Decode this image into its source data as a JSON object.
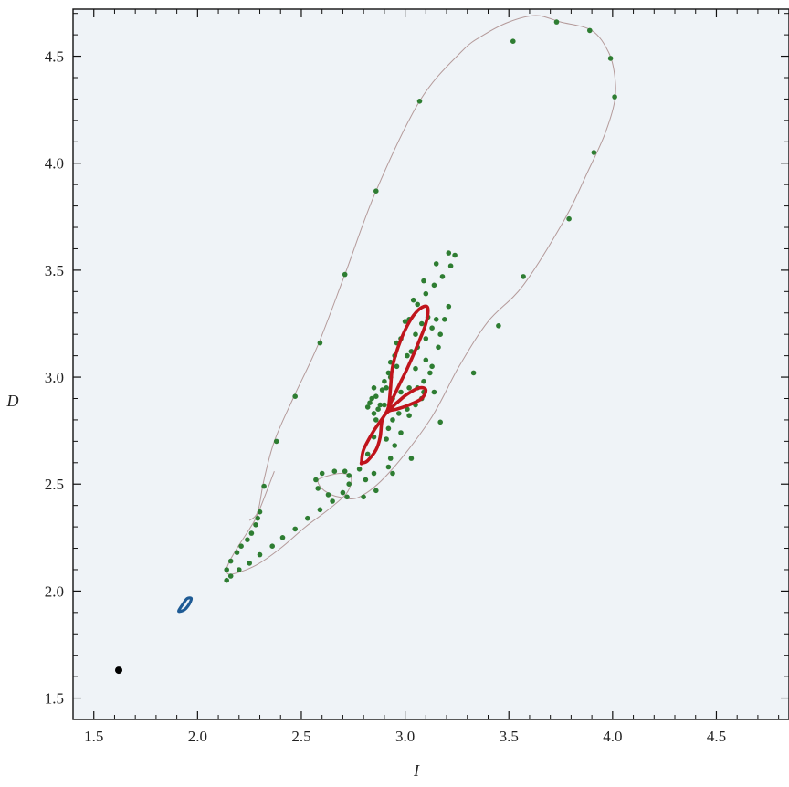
{
  "chart_data": {
    "type": "scatter",
    "title": "",
    "xlabel": "I",
    "ylabel": "D",
    "xlim": [
      1.4,
      4.85
    ],
    "ylim": [
      1.4,
      4.72
    ],
    "x_ticks": [
      1.5,
      2.0,
      2.5,
      3.0,
      3.5,
      4.0,
      4.5
    ],
    "y_ticks": [
      1.5,
      2.0,
      2.5,
      3.0,
      3.5,
      4.0,
      4.5
    ],
    "x_tick_labels": [
      "1.5",
      "2.0",
      "2.5",
      "3.0",
      "3.5",
      "4.0",
      "4.5"
    ],
    "y_tick_labels": [
      "1.5",
      "2.0",
      "2.5",
      "3.0",
      "3.5",
      "4.0",
      "4.5"
    ],
    "grid": false,
    "legend": "none",
    "colors": {
      "plot_background": "#eff3f7",
      "fixed_point": "#000000",
      "small_cycle": "#1f5b95",
      "large_orbit_line": "#b49a9a",
      "large_orbit_dots": "#2e7d32",
      "inner_cycle": "#c0141c"
    },
    "series": [
      {
        "kind": "point",
        "points": [
          [
            1.62,
            1.63
          ]
        ]
      },
      {
        "kind": "closed-curve",
        "points": [
          [
            1.91,
            1.91
          ],
          [
            1.93,
            1.94
          ],
          [
            1.95,
            1.965
          ],
          [
            1.97,
            1.965
          ],
          [
            1.96,
            1.94
          ],
          [
            1.94,
            1.915
          ],
          [
            1.915,
            1.905
          ]
        ]
      },
      {
        "kind": "line",
        "points": [
          [
            2.25,
            2.33
          ],
          [
            2.29,
            2.37
          ],
          [
            2.32,
            2.52
          ],
          [
            2.37,
            2.7
          ],
          [
            2.46,
            2.9
          ],
          [
            2.58,
            3.15
          ],
          [
            2.71,
            3.48
          ],
          [
            2.86,
            3.87
          ],
          [
            3.07,
            4.29
          ],
          [
            3.27,
            4.52
          ],
          [
            3.38,
            4.6
          ],
          [
            3.5,
            4.66
          ],
          [
            3.63,
            4.69
          ],
          [
            3.75,
            4.66
          ],
          [
            3.9,
            4.62
          ],
          [
            3.98,
            4.52
          ],
          [
            4.01,
            4.41
          ],
          [
            4.01,
            4.29
          ],
          [
            3.96,
            4.13
          ],
          [
            3.88,
            3.96
          ],
          [
            3.77,
            3.74
          ],
          [
            3.57,
            3.43
          ],
          [
            3.4,
            3.26
          ],
          [
            3.26,
            3.05
          ],
          [
            3.12,
            2.8
          ],
          [
            2.92,
            2.55
          ],
          [
            2.78,
            2.44
          ],
          [
            2.68,
            2.44
          ],
          [
            2.61,
            2.47
          ],
          [
            2.58,
            2.51
          ],
          [
            2.6,
            2.53
          ],
          [
            2.69,
            2.55
          ],
          [
            2.74,
            2.53
          ],
          [
            2.72,
            2.46
          ],
          [
            2.63,
            2.38
          ],
          [
            2.52,
            2.3
          ],
          [
            2.4,
            2.2
          ],
          [
            2.28,
            2.12
          ],
          [
            2.17,
            2.08
          ],
          [
            2.14,
            2.09
          ],
          [
            2.15,
            2.13
          ],
          [
            2.19,
            2.2
          ],
          [
            2.25,
            2.29
          ],
          [
            2.29,
            2.36
          ],
          [
            2.37,
            2.56
          ]
        ]
      },
      {
        "kind": "dots",
        "points": [
          [
            2.14,
            2.05
          ],
          [
            2.14,
            2.1
          ],
          [
            2.16,
            2.14
          ],
          [
            2.19,
            2.18
          ],
          [
            2.21,
            2.21
          ],
          [
            2.24,
            2.24
          ],
          [
            2.26,
            2.27
          ],
          [
            2.28,
            2.31
          ],
          [
            2.29,
            2.34
          ],
          [
            2.3,
            2.37
          ],
          [
            2.32,
            2.49
          ],
          [
            2.38,
            2.7
          ],
          [
            2.47,
            2.91
          ],
          [
            2.59,
            3.16
          ],
          [
            2.71,
            3.48
          ],
          [
            2.86,
            3.87
          ],
          [
            3.07,
            4.29
          ],
          [
            3.52,
            4.57
          ],
          [
            3.73,
            4.66
          ],
          [
            3.89,
            4.62
          ],
          [
            3.99,
            4.49
          ],
          [
            4.01,
            4.31
          ],
          [
            3.91,
            4.05
          ],
          [
            3.79,
            3.74
          ],
          [
            3.57,
            3.47
          ],
          [
            3.45,
            3.24
          ],
          [
            3.33,
            3.02
          ],
          [
            3.17,
            2.79
          ],
          [
            3.03,
            2.62
          ],
          [
            2.94,
            2.55
          ],
          [
            2.86,
            2.47
          ],
          [
            2.8,
            2.44
          ],
          [
            2.72,
            2.44
          ],
          [
            2.63,
            2.45
          ],
          [
            2.58,
            2.48
          ],
          [
            2.57,
            2.52
          ],
          [
            2.6,
            2.55
          ],
          [
            2.66,
            2.56
          ],
          [
            2.71,
            2.56
          ],
          [
            2.73,
            2.54
          ],
          [
            2.73,
            2.5
          ],
          [
            2.7,
            2.46
          ],
          [
            2.65,
            2.42
          ],
          [
            2.59,
            2.38
          ],
          [
            2.53,
            2.34
          ],
          [
            2.47,
            2.29
          ],
          [
            2.41,
            2.25
          ],
          [
            2.36,
            2.21
          ],
          [
            2.3,
            2.17
          ],
          [
            2.25,
            2.13
          ],
          [
            2.2,
            2.1
          ],
          [
            2.16,
            2.07
          ],
          [
            2.78,
            2.57
          ],
          [
            2.82,
            2.64
          ],
          [
            2.85,
            2.72
          ],
          [
            2.86,
            2.8
          ],
          [
            2.88,
            2.87
          ],
          [
            2.89,
            2.94
          ],
          [
            2.92,
            3.02
          ],
          [
            2.95,
            3.1
          ],
          [
            2.98,
            3.18
          ],
          [
            3.02,
            3.27
          ],
          [
            3.06,
            3.34
          ],
          [
            3.1,
            3.39
          ],
          [
            3.14,
            3.43
          ],
          [
            3.18,
            3.47
          ],
          [
            3.22,
            3.52
          ],
          [
            3.24,
            3.57
          ],
          [
            3.21,
            3.58
          ],
          [
            3.15,
            3.53
          ],
          [
            3.09,
            3.45
          ],
          [
            3.04,
            3.36
          ],
          [
            3.0,
            3.26
          ],
          [
            2.96,
            3.16
          ],
          [
            2.93,
            3.07
          ],
          [
            2.9,
            2.98
          ],
          [
            2.86,
            2.91
          ],
          [
            2.83,
            2.88
          ],
          [
            2.82,
            2.86
          ],
          [
            2.84,
            2.9
          ],
          [
            2.85,
            2.95
          ],
          [
            2.85,
            2.83
          ],
          [
            2.87,
            2.85
          ],
          [
            2.9,
            2.87
          ],
          [
            2.94,
            2.9
          ],
          [
            2.98,
            2.93
          ],
          [
            3.02,
            2.95
          ],
          [
            3.06,
            2.95
          ],
          [
            3.09,
            2.93
          ],
          [
            3.08,
            2.9
          ],
          [
            3.05,
            2.87
          ],
          [
            3.01,
            2.85
          ],
          [
            2.97,
            2.83
          ],
          [
            2.94,
            2.8
          ],
          [
            2.92,
            2.76
          ],
          [
            2.91,
            2.71
          ],
          [
            2.91,
            2.95
          ],
          [
            2.93,
            3.0
          ],
          [
            2.96,
            3.05
          ],
          [
            3.01,
            3.1
          ],
          [
            3.06,
            3.14
          ],
          [
            3.1,
            3.18
          ],
          [
            3.13,
            3.23
          ],
          [
            3.11,
            3.28
          ],
          [
            3.08,
            3.25
          ],
          [
            3.05,
            3.2
          ],
          [
            3.03,
            3.12
          ],
          [
            3.05,
            3.04
          ],
          [
            3.09,
            2.98
          ],
          [
            3.12,
            3.02
          ],
          [
            3.1,
            3.08
          ],
          [
            3.02,
            2.82
          ],
          [
            2.98,
            2.74
          ],
          [
            2.95,
            2.68
          ],
          [
            2.93,
            2.62
          ],
          [
            2.92,
            2.58
          ],
          [
            2.85,
            2.55
          ],
          [
            2.81,
            2.52
          ],
          [
            3.14,
            2.93
          ],
          [
            3.13,
            3.05
          ],
          [
            3.16,
            3.14
          ],
          [
            3.17,
            3.2
          ],
          [
            3.19,
            3.27
          ],
          [
            3.21,
            3.33
          ],
          [
            3.15,
            3.27
          ]
        ]
      },
      {
        "kind": "closed-curve",
        "points": [
          [
            2.79,
            2.6
          ],
          [
            2.8,
            2.66
          ],
          [
            2.85,
            2.75
          ],
          [
            2.9,
            2.82
          ],
          [
            2.92,
            2.86
          ],
          [
            2.93,
            2.95
          ],
          [
            2.94,
            3.05
          ],
          [
            2.97,
            3.15
          ],
          [
            3.01,
            3.24
          ],
          [
            3.05,
            3.3
          ],
          [
            3.09,
            3.33
          ],
          [
            3.11,
            3.32
          ],
          [
            3.1,
            3.25
          ],
          [
            3.06,
            3.15
          ],
          [
            3.01,
            3.04
          ],
          [
            2.96,
            2.94
          ],
          [
            2.92,
            2.85
          ],
          [
            2.96,
            2.88
          ],
          [
            3.01,
            2.92
          ],
          [
            3.07,
            2.95
          ],
          [
            3.1,
            2.94
          ],
          [
            3.08,
            2.9
          ],
          [
            3.02,
            2.87
          ],
          [
            2.96,
            2.85
          ],
          [
            2.92,
            2.84
          ],
          [
            2.89,
            2.8
          ],
          [
            2.88,
            2.72
          ],
          [
            2.86,
            2.66
          ],
          [
            2.82,
            2.61
          ],
          [
            2.8,
            2.6
          ],
          [
            2.79,
            2.6
          ]
        ]
      }
    ]
  }
}
